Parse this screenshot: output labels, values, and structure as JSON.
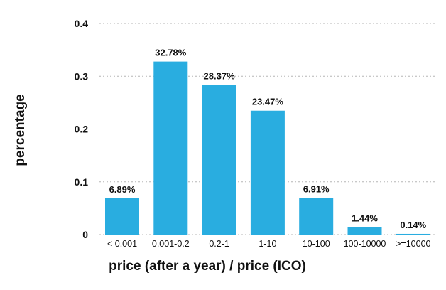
{
  "chart_data": {
    "type": "bar",
    "title": "",
    "xlabel": "price (after a year) / price (ICO)",
    "ylabel": "percentage",
    "categories": [
      "< 0.001",
      "0.001-0.2",
      "0.2-1",
      "1-10",
      "10-100",
      "100-10000",
      ">=10000"
    ],
    "values": [
      0.0689,
      0.3278,
      0.2837,
      0.2347,
      0.0691,
      0.0144,
      0.0014
    ],
    "data_labels": [
      "6.89%",
      "32.78%",
      "28.37%",
      "23.47%",
      "6.91%",
      "1.44%",
      "0.14%"
    ],
    "ylim": [
      0,
      0.4
    ],
    "yticks": [
      0,
      0.1,
      0.2,
      0.3,
      0.4
    ],
    "ytick_labels": [
      "0",
      "0.1",
      "0.2",
      "0.3",
      "0.4"
    ],
    "grid": true,
    "bar_color": "#29ade0"
  }
}
